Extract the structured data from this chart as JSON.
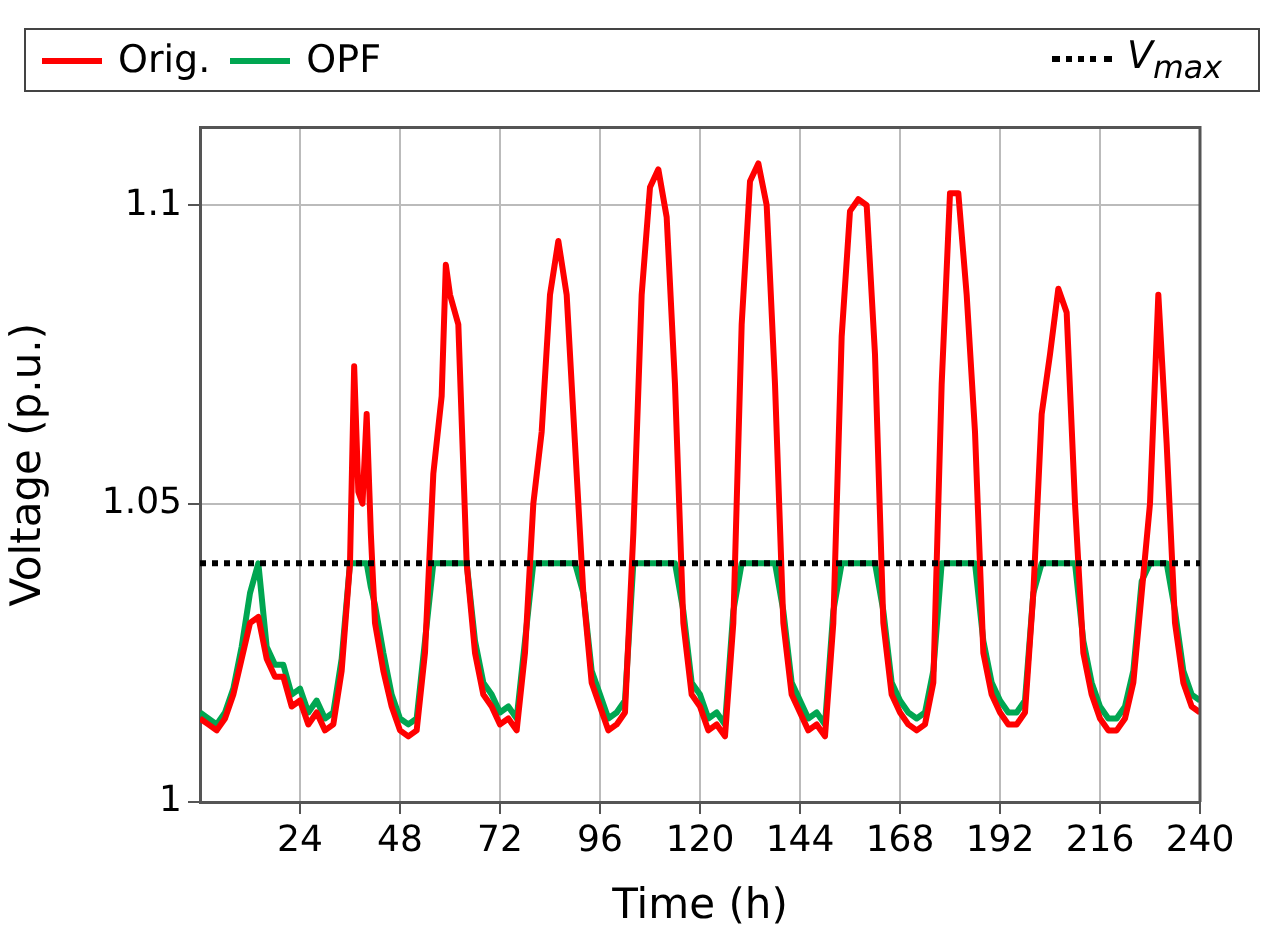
{
  "chart_data": {
    "type": "line",
    "xlabel": "Time (h)",
    "ylabel": "Voltage (p.u.)",
    "x": [
      0,
      2,
      4,
      6,
      8,
      10,
      12,
      14,
      16,
      18,
      20,
      22,
      24,
      26,
      28,
      30,
      32,
      34,
      36,
      37,
      38,
      39,
      40,
      41,
      42,
      44,
      46,
      48,
      50,
      52,
      54,
      56,
      58,
      59,
      60,
      62,
      64,
      66,
      68,
      70,
      72,
      74,
      76,
      78,
      80,
      82,
      84,
      86,
      88,
      90,
      92,
      94,
      96,
      98,
      100,
      102,
      104,
      106,
      108,
      110,
      112,
      114,
      116,
      118,
      120,
      122,
      124,
      126,
      128,
      130,
      132,
      134,
      136,
      138,
      140,
      142,
      144,
      146,
      148,
      150,
      152,
      154,
      156,
      158,
      160,
      162,
      164,
      166,
      168,
      170,
      172,
      174,
      176,
      178,
      180,
      182,
      184,
      186,
      188,
      190,
      192,
      194,
      196,
      198,
      200,
      202,
      204,
      206,
      208,
      210,
      212,
      214,
      216,
      218,
      220,
      222,
      224,
      226,
      228,
      230,
      232,
      234,
      236,
      238,
      240
    ],
    "series": [
      {
        "name": "Orig.",
        "color": "#ff0000",
        "values": [
          1.014,
          1.013,
          1.012,
          1.014,
          1.018,
          1.024,
          1.03,
          1.031,
          1.024,
          1.021,
          1.021,
          1.016,
          1.017,
          1.013,
          1.015,
          1.012,
          1.013,
          1.022,
          1.04,
          1.073,
          1.052,
          1.05,
          1.065,
          1.045,
          1.03,
          1.022,
          1.016,
          1.012,
          1.011,
          1.012,
          1.025,
          1.055,
          1.068,
          1.09,
          1.085,
          1.08,
          1.04,
          1.025,
          1.018,
          1.016,
          1.013,
          1.014,
          1.012,
          1.025,
          1.05,
          1.062,
          1.085,
          1.094,
          1.085,
          1.06,
          1.035,
          1.02,
          1.016,
          1.012,
          1.013,
          1.015,
          1.045,
          1.085,
          1.103,
          1.106,
          1.098,
          1.07,
          1.03,
          1.018,
          1.016,
          1.012,
          1.013,
          1.011,
          1.03,
          1.08,
          1.104,
          1.107,
          1.1,
          1.07,
          1.03,
          1.018,
          1.015,
          1.012,
          1.013,
          1.011,
          1.03,
          1.078,
          1.099,
          1.101,
          1.1,
          1.075,
          1.03,
          1.018,
          1.015,
          1.013,
          1.012,
          1.013,
          1.02,
          1.07,
          1.102,
          1.102,
          1.085,
          1.062,
          1.025,
          1.018,
          1.015,
          1.013,
          1.013,
          1.015,
          1.035,
          1.065,
          1.075,
          1.086,
          1.082,
          1.05,
          1.025,
          1.018,
          1.014,
          1.012,
          1.012,
          1.014,
          1.02,
          1.035,
          1.05,
          1.085,
          1.06,
          1.03,
          1.02,
          1.016,
          1.015
        ]
      },
      {
        "name": "OPF",
        "color": "#00a651",
        "values": [
          1.015,
          1.014,
          1.013,
          1.015,
          1.019,
          1.026,
          1.035,
          1.04,
          1.026,
          1.023,
          1.023,
          1.018,
          1.019,
          1.015,
          1.017,
          1.014,
          1.015,
          1.024,
          1.04,
          1.04,
          1.04,
          1.04,
          1.04,
          1.036,
          1.033,
          1.025,
          1.018,
          1.014,
          1.013,
          1.014,
          1.027,
          1.04,
          1.04,
          1.04,
          1.04,
          1.04,
          1.04,
          1.027,
          1.02,
          1.018,
          1.015,
          1.016,
          1.014,
          1.027,
          1.04,
          1.04,
          1.04,
          1.04,
          1.04,
          1.04,
          1.035,
          1.022,
          1.018,
          1.014,
          1.015,
          1.017,
          1.04,
          1.04,
          1.04,
          1.04,
          1.04,
          1.04,
          1.032,
          1.02,
          1.018,
          1.014,
          1.015,
          1.013,
          1.032,
          1.04,
          1.04,
          1.04,
          1.04,
          1.04,
          1.032,
          1.02,
          1.017,
          1.014,
          1.015,
          1.013,
          1.032,
          1.04,
          1.04,
          1.04,
          1.04,
          1.04,
          1.032,
          1.02,
          1.017,
          1.015,
          1.014,
          1.015,
          1.022,
          1.04,
          1.04,
          1.04,
          1.04,
          1.04,
          1.027,
          1.02,
          1.017,
          1.015,
          1.015,
          1.017,
          1.035,
          1.04,
          1.04,
          1.04,
          1.04,
          1.04,
          1.027,
          1.02,
          1.016,
          1.014,
          1.014,
          1.016,
          1.022,
          1.037,
          1.04,
          1.04,
          1.04,
          1.032,
          1.022,
          1.018,
          1.017
        ]
      }
    ],
    "xlim": [
      0,
      240
    ],
    "xticks": [
      24,
      48,
      72,
      96,
      120,
      144,
      168,
      192,
      216,
      240
    ],
    "ylim": [
      1,
      1.113
    ],
    "yticks": [
      1,
      1.05,
      1.1
    ],
    "ref_lines": [
      {
        "axis": "y",
        "value": 1.04,
        "label": "V$_{max}$",
        "color": "#000000",
        "line_style": "dotted"
      }
    ],
    "grid": true,
    "legend": "top",
    "line_style": "solid",
    "marker": "none"
  }
}
